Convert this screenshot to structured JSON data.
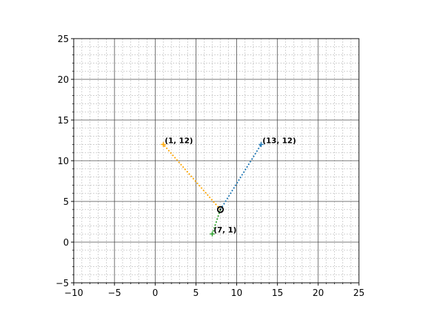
{
  "chart_data": {
    "type": "scatter",
    "title": "",
    "xlabel": "",
    "ylabel": "",
    "xlim": [
      -10,
      25
    ],
    "ylim": [
      -5,
      25
    ],
    "major_step": 5,
    "minor_step": 1,
    "grid": "major and minor",
    "center": {
      "x": 8,
      "y": 4,
      "color": "#000000"
    },
    "x_ticks": [
      "−10",
      "−5",
      "0",
      "5",
      "10",
      "15",
      "20",
      "25"
    ],
    "y_ticks": [
      "−5",
      "0",
      "5",
      "10",
      "15",
      "20",
      "25"
    ],
    "points": [
      {
        "x": 1,
        "y": 12,
        "label": "(1, 12)",
        "color": "#ffa500"
      },
      {
        "x": 13,
        "y": 12,
        "label": "(13, 12)",
        "color": "#1f77b4"
      },
      {
        "x": 7,
        "y": 1,
        "label": "(7, 1)",
        "color": "#2ca02c"
      }
    ]
  }
}
